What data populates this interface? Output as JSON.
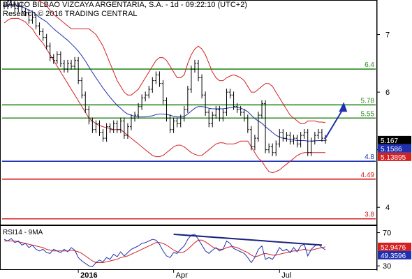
{
  "header": {
    "title": "BANCO BILBAO VIZCAYA ARGENTARIA, S.A. - 1d - 09:22:10 (UTC+2)",
    "subtitle": "Research © 2016 TRADING CENTRAL"
  },
  "chart_data": {
    "type": "line",
    "price_axis": {
      "ylim": [
        3.7,
        7.6
      ],
      "ticks": [
        "7",
        "6",
        "5",
        "4"
      ]
    },
    "rsi_axis": {
      "label": "RSI14 - 9MA",
      "ylim": [
        26,
        78
      ],
      "ticks": [
        "70",
        "30"
      ]
    },
    "x_ticks": [
      {
        "label": "2016",
        "index": 21,
        "bold": true
      },
      {
        "label": "Apr",
        "index": 48,
        "bold": false
      },
      {
        "label": "Jul",
        "index": 78,
        "bold": false
      }
    ],
    "close": [
      7.5,
      7.58,
      7.52,
      7.45,
      7.5,
      7.4,
      7.38,
      7.25,
      7.3,
      7.15,
      7.05,
      6.95,
      6.8,
      6.6,
      6.55,
      6.65,
      6.5,
      6.4,
      6.5,
      6.45,
      6.55,
      6.2,
      5.95,
      5.7,
      5.5,
      5.35,
      5.45,
      5.3,
      5.2,
      5.4,
      5.35,
      5.45,
      5.35,
      5.5,
      5.25,
      5.4,
      5.55,
      5.6,
      5.75,
      5.9,
      5.95,
      6.05,
      6.2,
      6.3,
      6.15,
      5.85,
      5.55,
      5.35,
      5.5,
      5.45,
      5.55,
      5.7,
      6.05,
      6.4,
      6.5,
      6.25,
      5.95,
      5.65,
      5.45,
      5.6,
      5.7,
      5.55,
      5.65,
      6.0,
      5.95,
      5.75,
      5.7,
      5.65,
      5.55,
      5.35,
      5.05,
      5.2,
      5.6,
      5.8,
      5.0,
      5.05,
      4.95,
      5.1,
      5.3,
      5.2,
      5.25,
      5.15,
      5.2,
      5.1,
      5.25,
      5.3,
      4.95,
      5.15,
      5.25,
      5.3,
      5.2,
      5.167
    ],
    "series": [
      {
        "name": "MA",
        "values": [
          7.5,
          7.52,
          7.52,
          7.5,
          7.49,
          7.48,
          7.46,
          7.42,
          7.4,
          7.35,
          7.3,
          7.26,
          7.22,
          7.16,
          7.1,
          7.05,
          7.0,
          6.95,
          6.9,
          6.84,
          6.78,
          6.71,
          6.63,
          6.54,
          6.44,
          6.34,
          6.25,
          6.16,
          6.07,
          5.99,
          5.91,
          5.84,
          5.77,
          5.72,
          5.66,
          5.62,
          5.6,
          5.58,
          5.57,
          5.57,
          5.57,
          5.58,
          5.59,
          5.61,
          5.62,
          5.62,
          5.61,
          5.6,
          5.58,
          5.57,
          5.57,
          5.58,
          5.62,
          5.67,
          5.72,
          5.75,
          5.75,
          5.74,
          5.72,
          5.71,
          5.71,
          5.71,
          5.71,
          5.72,
          5.73,
          5.74,
          5.74,
          5.72,
          5.7,
          5.66,
          5.6,
          5.54,
          5.5,
          5.46,
          5.4,
          5.35,
          5.3,
          5.25,
          5.22,
          5.2,
          5.19,
          5.18,
          5.17,
          5.16,
          5.16,
          5.16,
          5.15,
          5.15,
          5.155,
          5.16,
          5.16,
          5.1586
        ]
      },
      {
        "name": "Upper band",
        "values": [
          7.7,
          7.72,
          7.72,
          7.7,
          7.7,
          7.68,
          7.68,
          7.66,
          7.64,
          7.62,
          7.58,
          7.55,
          7.5,
          7.42,
          7.35,
          7.3,
          7.25,
          7.2,
          7.15,
          7.1,
          7.1,
          7.1,
          7.1,
          7.1,
          7.1,
          7.05,
          7.0,
          6.9,
          6.8,
          6.65,
          6.5,
          6.35,
          6.2,
          6.1,
          6.0,
          5.95,
          5.95,
          6.0,
          6.05,
          6.15,
          6.25,
          6.35,
          6.45,
          6.55,
          6.6,
          6.6,
          6.55,
          6.45,
          6.35,
          6.25,
          6.25,
          6.3,
          6.5,
          6.65,
          6.75,
          6.8,
          6.75,
          6.65,
          6.5,
          6.35,
          6.25,
          6.2,
          6.2,
          6.25,
          6.28,
          6.3,
          6.28,
          6.25,
          6.2,
          6.1,
          6.0,
          6.0,
          6.05,
          6.1,
          6.15,
          6.15,
          6.1,
          6.0,
          5.9,
          5.8,
          5.7,
          5.6,
          5.55,
          5.5,
          5.45,
          5.45,
          5.5,
          5.5,
          5.5,
          5.48,
          5.48,
          5.47
        ]
      },
      {
        "name": "Lower band",
        "values": [
          7.2,
          7.25,
          7.28,
          7.28,
          7.28,
          7.25,
          7.22,
          7.15,
          7.1,
          7.0,
          6.92,
          6.85,
          6.75,
          6.65,
          6.55,
          6.45,
          6.35,
          6.25,
          6.15,
          6.05,
          5.95,
          5.85,
          5.75,
          5.65,
          5.55,
          5.5,
          5.45,
          5.42,
          5.4,
          5.38,
          5.37,
          5.35,
          5.35,
          5.35,
          5.3,
          5.25,
          5.2,
          5.15,
          5.1,
          5.05,
          5.0,
          4.95,
          4.9,
          4.88,
          4.88,
          4.9,
          4.95,
          5.0,
          5.05,
          5.08,
          5.08,
          5.05,
          5.0,
          4.95,
          4.92,
          4.9,
          4.9,
          4.95,
          5.0,
          5.05,
          5.1,
          5.12,
          5.12,
          5.1,
          5.1,
          5.1,
          5.12,
          5.15,
          5.15,
          5.15,
          5.05,
          4.95,
          4.85,
          4.8,
          4.7,
          4.62,
          4.6,
          4.62,
          4.65,
          4.7,
          4.75,
          4.8,
          4.85,
          4.9,
          4.93,
          4.95,
          4.95,
          4.95,
          4.95,
          4.95,
          4.95,
          4.95
        ]
      }
    ],
    "levels": [
      {
        "label": "6.4",
        "value": 6.4,
        "color": "#2e8b22"
      },
      {
        "label": "5.78",
        "value": 5.78,
        "color": "#2e8b22"
      },
      {
        "label": "5.55",
        "value": 5.55,
        "color": "#2e8b22"
      },
      {
        "label": "4.8",
        "value": 4.8,
        "color": "#1f2fb0"
      },
      {
        "label": "4.49",
        "value": 4.49,
        "color": "#d42020"
      },
      {
        "label": "3.8",
        "value": 3.8,
        "color": "#d42020"
      }
    ],
    "price_badges": [
      {
        "text": "5.167",
        "value": 5.167,
        "bg": "#000000"
      },
      {
        "text": "5.1586",
        "value": 5.1586,
        "bg": "#1f2fb0"
      },
      {
        "text": "5.13895",
        "value": 5.13895,
        "bg": "#d42020"
      }
    ],
    "forecast_arrow": {
      "from": [
        91,
        5.2
      ],
      "to": [
        96,
        5.78
      ],
      "color": "#1f2fb0"
    },
    "rsi": [
      62,
      60,
      63,
      58,
      60,
      55,
      57,
      52,
      55,
      50,
      48,
      50,
      46,
      45,
      50,
      48,
      46,
      50,
      47,
      52,
      49,
      40,
      36,
      33,
      30,
      29,
      34,
      37,
      35,
      40,
      38,
      44,
      41,
      47,
      42,
      46,
      50,
      52,
      54,
      57,
      58,
      60,
      62,
      61,
      56,
      48,
      42,
      40,
      46,
      45,
      50,
      54,
      62,
      67,
      68,
      62,
      55,
      48,
      45,
      49,
      52,
      48,
      50,
      60,
      57,
      51,
      49,
      47,
      45,
      40,
      34,
      40,
      50,
      54,
      38,
      40,
      38,
      44,
      52,
      48,
      50,
      46,
      52,
      47,
      54,
      56,
      42,
      50,
      54,
      56,
      52,
      49.3596
    ],
    "rsi_ma": [
      60,
      60,
      60,
      60,
      59,
      58,
      57,
      56,
      55,
      54,
      53,
      52,
      50,
      49,
      48,
      48,
      48,
      48,
      48,
      49,
      48,
      47,
      45,
      42,
      39,
      36,
      34,
      34,
      34,
      35,
      36,
      37,
      38,
      40,
      41,
      42,
      44,
      46,
      48,
      50,
      52,
      54,
      56,
      58,
      58,
      57,
      55,
      52,
      49,
      47,
      46,
      47,
      50,
      54,
      58,
      61,
      61,
      59,
      56,
      53,
      51,
      50,
      50,
      52,
      53,
      53,
      52,
      50,
      48,
      46,
      43,
      41,
      42,
      44,
      45,
      44,
      43,
      43,
      44,
      45,
      46,
      47,
      48,
      48,
      49,
      50,
      49,
      49,
      50,
      51,
      52,
      52.9476
    ],
    "rsi_trendline": {
      "from": [
        48,
        68
      ],
      "to": [
        90,
        55
      ],
      "color": "#1a237e"
    },
    "rsi_badges": [
      {
        "text": "52.9476",
        "value": 52.9476,
        "bg": "#d42020"
      },
      {
        "text": "49.3596",
        "value": 49.3596,
        "bg": "#1f2fb0"
      }
    ],
    "colors": {
      "price": "#000000",
      "ma": "#1f2fb0",
      "bands": "#d42020",
      "rsi": "#1f2fb0",
      "rsi_ma": "#d42020"
    }
  }
}
